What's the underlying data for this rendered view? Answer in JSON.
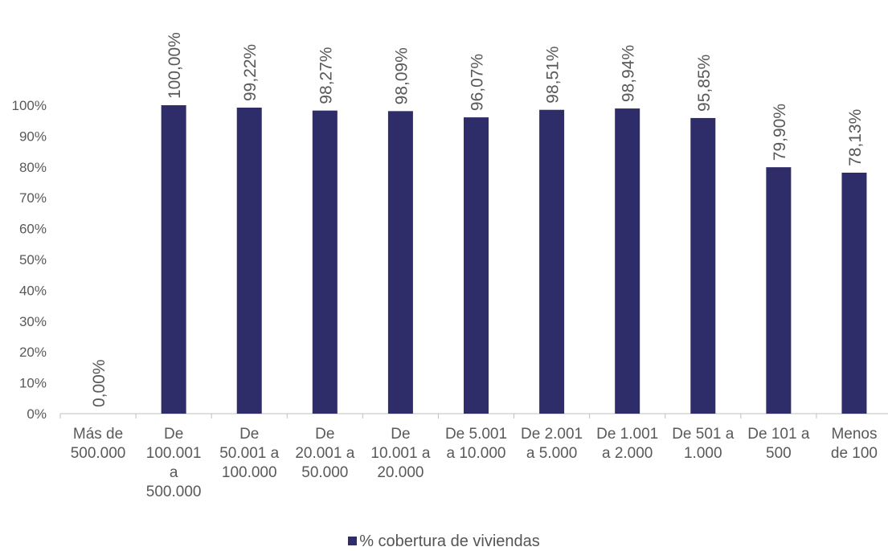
{
  "chart_data": {
    "type": "bar",
    "categories": [
      "Más de 500.000",
      "De 100.001 a 500.000",
      "De 50.001 a 100.000",
      "De 20.001 a 50.000",
      "De 10.001 a 20.000",
      "De 5.001 a 10.000",
      "De 2.001 a 5.000",
      "De 1.001 a 2.000",
      "De 501 a 1.000",
      "De 101 a 500",
      "Menos de 100"
    ],
    "category_lines": [
      [
        "Más de",
        "500.000"
      ],
      [
        "De",
        "100.001",
        "a",
        "500.000"
      ],
      [
        "De",
        "50.001 a",
        "100.000"
      ],
      [
        "De",
        "20.001 a",
        "50.000"
      ],
      [
        "De",
        "10.001 a",
        "20.000"
      ],
      [
        "De 5.001",
        "a 10.000"
      ],
      [
        "De 2.001",
        "a 5.000"
      ],
      [
        "De 1.001",
        "a 2.000"
      ],
      [
        "De 501 a",
        "1.000"
      ],
      [
        "De 101 a",
        "500"
      ],
      [
        "Menos",
        "de 100"
      ]
    ],
    "series": [
      {
        "name": "% cobertura de viviendas",
        "values": [
          0.0,
          100.0,
          99.22,
          98.27,
          98.09,
          96.07,
          98.51,
          98.94,
          95.85,
          79.9,
          78.13
        ],
        "labels": [
          "0,00%",
          "100,00%",
          "99,22%",
          "98,27%",
          "98,09%",
          "96,07%",
          "98,51%",
          "98,94%",
          "95,85%",
          "79,90%",
          "78,13%"
        ],
        "color": "#2e2d69"
      }
    ],
    "ylim": [
      0,
      100
    ],
    "y_ticks": [
      0,
      10,
      20,
      30,
      40,
      50,
      60,
      70,
      80,
      90,
      100
    ],
    "y_tick_labels": [
      "0%",
      "10%",
      "20%",
      "30%",
      "40%",
      "50%",
      "60%",
      "70%",
      "80%",
      "90%",
      "100%"
    ],
    "title": "",
    "xlabel": "",
    "ylabel": "",
    "grid": false,
    "legend_position": "bottom",
    "data_label_orientation": "vertical",
    "colors": {
      "text": "#595959",
      "axis": "#bfbfbf"
    }
  },
  "legend": {
    "label": "% cobertura de viviendas"
  }
}
